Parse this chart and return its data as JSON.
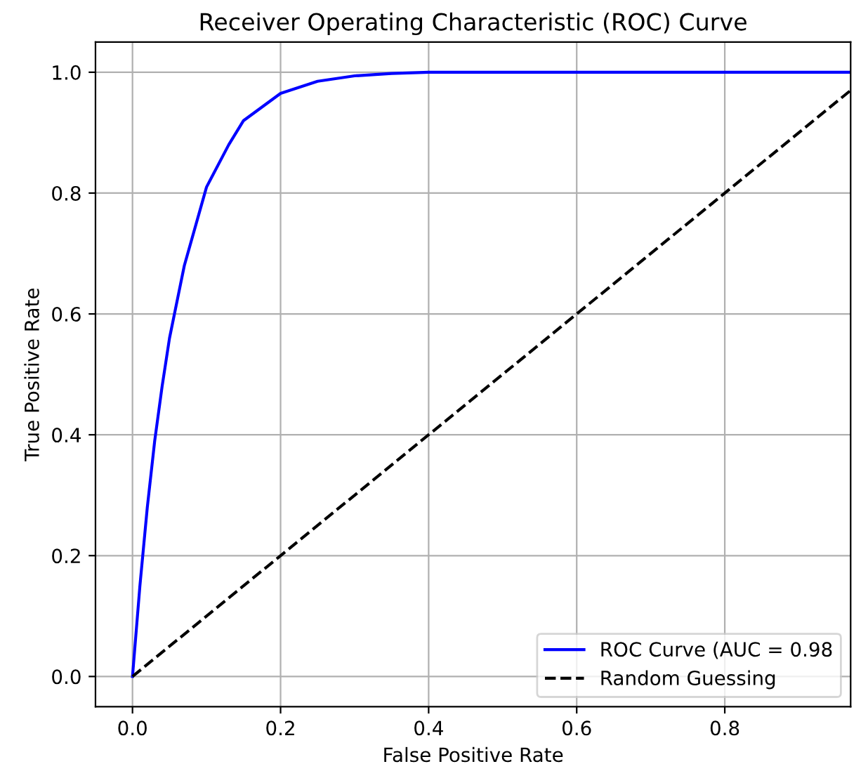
{
  "chart_data": {
    "type": "line",
    "title": "Receiver Operating Characteristic (ROC) Curve",
    "xlabel": "False Positive Rate",
    "ylabel": "True Positive Rate",
    "series": [
      {
        "name": "ROC Curve (AUC = 0.98",
        "color": "#0000ff",
        "line_style": "solid",
        "x": [
          0,
          0.01,
          0.02,
          0.03,
          0.04,
          0.05,
          0.07,
          0.1,
          0.13,
          0.15,
          0.2,
          0.25,
          0.3,
          0.35,
          0.4,
          0.5,
          0.6,
          0.8,
          0.97
        ],
        "values": [
          0,
          0.15,
          0.28,
          0.39,
          0.48,
          0.56,
          0.68,
          0.81,
          0.88,
          0.92,
          0.965,
          0.985,
          0.994,
          0.998,
          1.0,
          1.0,
          1.0,
          1.0,
          1.0
        ]
      },
      {
        "name": "Random Guessing",
        "color": "#000000",
        "line_style": "dashed",
        "x": [
          0,
          0.97
        ],
        "values": [
          0,
          0.97
        ]
      }
    ],
    "xlim": [
      -0.05,
      0.97
    ],
    "ylim": [
      -0.05,
      1.05
    ],
    "xticks": [
      {
        "value": 0,
        "label": "0.0"
      },
      0.2,
      0.4,
      0.6,
      0.8
    ],
    "yticks": [
      {
        "value": 0,
        "label": "0.0"
      },
      0.2,
      0.4,
      0.6,
      0.8,
      {
        "value": 1,
        "label": "1.0"
      }
    ],
    "grid": true,
    "legend": "bottom right",
    "marker": "none"
  }
}
